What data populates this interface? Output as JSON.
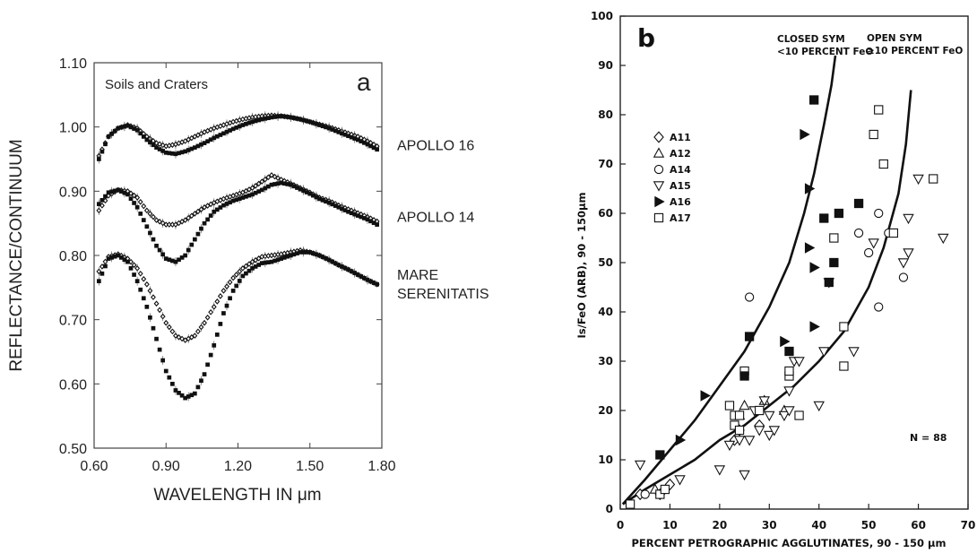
{
  "chart_data": [
    {
      "type": "scatter",
      "panel_label": "a",
      "annotation": "Soils and Craters",
      "title": "",
      "xlabel": "WAVELENGTH IN μm",
      "ylabel": "REFLECTANCE/CONTINUUM",
      "xlim": [
        0.6,
        1.8
      ],
      "ylim": [
        0.5,
        1.1
      ],
      "xticks": [
        "0.60",
        "0.90",
        "1.20",
        "1.50",
        "1.80"
      ],
      "yticks": [
        "0.50",
        "0.60",
        "0.70",
        "0.80",
        "0.90",
        "1.00",
        "1.10"
      ],
      "grid": false,
      "side_labels": [
        {
          "lines": [
            "APOLLO 16"
          ],
          "y": 0.972
        },
        {
          "lines": [
            "APOLLO 14"
          ],
          "y": 0.861
        },
        {
          "lines": [
            "MARE",
            "SERENITATIS"
          ],
          "y": 0.771
        }
      ],
      "series": [
        {
          "marker": "diamond",
          "x": [
            0.62,
            0.66,
            0.7,
            0.74,
            0.78,
            0.82,
            0.86,
            0.9,
            0.94,
            0.98,
            1.02,
            1.06,
            1.1,
            1.14,
            1.18,
            1.22,
            1.26,
            1.3,
            1.34,
            1.38,
            1.42,
            1.46,
            1.5,
            1.54,
            1.58,
            1.62,
            1.66,
            1.7,
            1.74,
            1.78
          ],
          "y": [
            0.955,
            0.985,
            0.998,
            1.003,
            0.998,
            0.985,
            0.975,
            0.97,
            0.973,
            0.978,
            0.985,
            0.992,
            0.998,
            1.003,
            1.008,
            1.012,
            1.015,
            1.017,
            1.018,
            1.017,
            1.015,
            1.012,
            1.008,
            1.004,
            1.0,
            0.995,
            0.99,
            0.985,
            0.978,
            0.97
          ]
        },
        {
          "marker": "square",
          "x": [
            0.62,
            0.66,
            0.7,
            0.74,
            0.78,
            0.82,
            0.86,
            0.9,
            0.94,
            0.98,
            1.02,
            1.06,
            1.1,
            1.14,
            1.18,
            1.22,
            1.26,
            1.3,
            1.34,
            1.38,
            1.42,
            1.46,
            1.5,
            1.54,
            1.58,
            1.62,
            1.66,
            1.7,
            1.74,
            1.78
          ],
          "y": [
            0.95,
            0.985,
            0.998,
            1.002,
            0.995,
            0.98,
            0.968,
            0.96,
            0.958,
            0.962,
            0.968,
            0.975,
            0.983,
            0.99,
            0.997,
            1.003,
            1.008,
            1.012,
            1.015,
            1.017,
            1.015,
            1.012,
            1.008,
            1.003,
            0.998,
            0.992,
            0.986,
            0.98,
            0.973,
            0.965
          ]
        },
        {
          "marker": "diamond",
          "x": [
            0.62,
            0.66,
            0.7,
            0.74,
            0.78,
            0.82,
            0.86,
            0.9,
            0.94,
            0.98,
            1.02,
            1.06,
            1.1,
            1.14,
            1.18,
            1.22,
            1.26,
            1.3,
            1.34,
            1.38,
            1.42,
            1.46,
            1.5,
            1.54,
            1.58,
            1.62,
            1.66,
            1.7,
            1.74,
            1.78
          ],
          "y": [
            0.87,
            0.893,
            0.902,
            0.9,
            0.89,
            0.87,
            0.855,
            0.848,
            0.848,
            0.855,
            0.865,
            0.875,
            0.882,
            0.888,
            0.893,
            0.898,
            0.905,
            0.915,
            0.925,
            0.918,
            0.912,
            0.905,
            0.898,
            0.89,
            0.885,
            0.878,
            0.872,
            0.866,
            0.86,
            0.853
          ]
        },
        {
          "marker": "square",
          "x": [
            0.62,
            0.66,
            0.7,
            0.74,
            0.78,
            0.82,
            0.86,
            0.9,
            0.94,
            0.98,
            1.02,
            1.06,
            1.1,
            1.14,
            1.18,
            1.22,
            1.26,
            1.3,
            1.34,
            1.38,
            1.42,
            1.46,
            1.5,
            1.54,
            1.58,
            1.62,
            1.66,
            1.7,
            1.74,
            1.78
          ],
          "y": [
            0.88,
            0.898,
            0.902,
            0.895,
            0.875,
            0.845,
            0.815,
            0.795,
            0.79,
            0.8,
            0.825,
            0.85,
            0.868,
            0.878,
            0.885,
            0.89,
            0.895,
            0.902,
            0.91,
            0.913,
            0.91,
            0.903,
            0.896,
            0.888,
            0.882,
            0.875,
            0.868,
            0.862,
            0.856,
            0.848
          ]
        },
        {
          "marker": "diamond",
          "x": [
            0.62,
            0.66,
            0.7,
            0.74,
            0.78,
            0.82,
            0.86,
            0.9,
            0.94,
            0.98,
            1.02,
            1.06,
            1.1,
            1.14,
            1.18,
            1.22,
            1.26,
            1.3,
            1.34,
            1.38,
            1.42,
            1.46,
            1.5,
            1.54,
            1.58,
            1.62,
            1.66,
            1.7,
            1.74,
            1.78
          ],
          "y": [
            0.775,
            0.798,
            0.802,
            0.795,
            0.78,
            0.755,
            0.725,
            0.695,
            0.675,
            0.668,
            0.675,
            0.695,
            0.72,
            0.745,
            0.765,
            0.78,
            0.79,
            0.798,
            0.8,
            0.802,
            0.805,
            0.808,
            0.805,
            0.8,
            0.793,
            0.785,
            0.778,
            0.77,
            0.762,
            0.755
          ]
        },
        {
          "marker": "square",
          "x": [
            0.62,
            0.66,
            0.7,
            0.74,
            0.78,
            0.82,
            0.86,
            0.9,
            0.94,
            0.98,
            1.02,
            1.06,
            1.1,
            1.14,
            1.18,
            1.22,
            1.26,
            1.3,
            1.34,
            1.38,
            1.42,
            1.46,
            1.5,
            1.54,
            1.58,
            1.62,
            1.66,
            1.7,
            1.74,
            1.78
          ],
          "y": [
            0.76,
            0.795,
            0.8,
            0.79,
            0.76,
            0.72,
            0.67,
            0.62,
            0.59,
            0.578,
            0.585,
            0.615,
            0.66,
            0.71,
            0.745,
            0.768,
            0.78,
            0.788,
            0.79,
            0.795,
            0.8,
            0.805,
            0.805,
            0.8,
            0.793,
            0.785,
            0.778,
            0.77,
            0.762,
            0.755
          ]
        }
      ]
    },
    {
      "type": "scatter",
      "panel_label": "b",
      "title": "",
      "xlabel": "PERCENT PETROGRAPHIC AGGLUTINATES, 90 - 150 μm",
      "ylabel": "Is/FeO (ARB), 90 - 150μm",
      "xlim": [
        0,
        70
      ],
      "ylim": [
        0,
        100
      ],
      "xticks": [
        "0",
        "10",
        "20",
        "30",
        "40",
        "50",
        "60",
        "70"
      ],
      "yticks": [
        "0",
        "10",
        "20",
        "30",
        "40",
        "50",
        "60",
        "70",
        "80",
        "90",
        "100"
      ],
      "grid": false,
      "curve_labels": [
        {
          "lines": [
            "CLOSED SYM",
            "<10 PERCENT FeO"
          ]
        },
        {
          "lines": [
            "OPEN SYM",
            "≥10 PERCENT FeO"
          ]
        }
      ],
      "annotation": "N = 88",
      "legend": [
        "A11",
        "A12",
        "A14",
        "A15",
        "A16",
        "A17"
      ],
      "legend_placement": "upper-left",
      "curves": [
        {
          "x": [
            0.5,
            5,
            10,
            15,
            20,
            25,
            30,
            34,
            37,
            39,
            41,
            42.5,
            43.3
          ],
          "y": [
            1,
            6,
            12,
            18,
            25,
            32,
            41,
            50,
            60,
            68,
            78,
            86,
            92
          ]
        },
        {
          "x": [
            0.5,
            5,
            10,
            15,
            20,
            25,
            30,
            35,
            40,
            45,
            50,
            53,
            56,
            57.5,
            58.5
          ],
          "y": [
            1,
            4,
            7,
            10,
            14,
            17,
            21,
            25,
            30,
            36,
            45,
            53,
            64,
            74,
            85
          ]
        }
      ],
      "groups": [
        {
          "name": "A11",
          "marker": "diamond",
          "fill": false,
          "points": [
            [
              4,
              3
            ],
            [
              8,
              3
            ],
            [
              10,
              5
            ],
            [
              23,
              14
            ],
            [
              24,
              16
            ],
            [
              28,
              17
            ]
          ]
        },
        {
          "name": "A12",
          "marker": "triangle-up",
          "fill": false,
          "points": [
            [
              7,
              4
            ],
            [
              24,
              19
            ],
            [
              25,
              21
            ],
            [
              29,
              22
            ],
            [
              33,
              20
            ]
          ]
        },
        {
          "name": "A14",
          "marker": "circle",
          "fill": false,
          "points": [
            [
              5,
              3
            ],
            [
              26,
              43
            ],
            [
              48,
              56
            ],
            [
              50,
              52
            ],
            [
              52,
              60
            ],
            [
              52,
              41
            ],
            [
              54,
              56
            ],
            [
              57,
              47
            ]
          ]
        },
        {
          "name": "A15",
          "marker": "triangle-down",
          "fill": false,
          "points": [
            [
              4,
              9
            ],
            [
              12,
              6
            ],
            [
              20,
              8
            ],
            [
              22,
              13
            ],
            [
              24,
              14
            ],
            [
              25,
              7
            ],
            [
              26,
              14
            ],
            [
              27,
              20
            ],
            [
              28,
              16
            ],
            [
              29,
              22
            ],
            [
              30,
              15
            ],
            [
              30,
              19
            ],
            [
              31,
              16
            ],
            [
              33,
              19
            ],
            [
              34,
              20
            ],
            [
              34,
              24
            ],
            [
              35,
              30
            ],
            [
              36,
              30
            ],
            [
              40,
              21
            ],
            [
              41,
              32
            ],
            [
              42,
              46
            ],
            [
              47,
              32
            ],
            [
              51,
              54
            ],
            [
              57,
              50
            ],
            [
              58,
              52
            ],
            [
              58,
              59
            ],
            [
              60,
              67
            ],
            [
              65,
              55
            ]
          ]
        },
        {
          "name": "A16",
          "marker": "triangle-right",
          "fill": true,
          "points": [
            [
              12,
              14
            ],
            [
              17,
              23
            ],
            [
              33,
              34
            ],
            [
              37,
              76
            ],
            [
              38,
              65
            ],
            [
              38,
              53
            ],
            [
              39,
              49
            ],
            [
              39,
              37
            ]
          ]
        },
        {
          "name": "A17",
          "marker": "square",
          "fill": false,
          "points": [
            [
              2,
              1
            ],
            [
              8,
              3
            ],
            [
              9,
              4
            ],
            [
              22,
              21
            ],
            [
              23,
              17
            ],
            [
              23,
              19
            ],
            [
              24,
              16
            ],
            [
              24,
              19
            ],
            [
              25,
              28
            ],
            [
              28,
              20
            ],
            [
              34,
              27
            ],
            [
              34,
              28
            ],
            [
              36,
              19
            ],
            [
              43,
              55
            ],
            [
              45,
              37
            ],
            [
              45,
              29
            ],
            [
              51,
              76
            ],
            [
              52,
              81
            ],
            [
              53,
              70
            ],
            [
              55,
              56
            ],
            [
              63,
              67
            ]
          ]
        },
        {
          "name": "filled-square",
          "marker": "square",
          "fill": true,
          "points": [
            [
              8,
              11
            ],
            [
              25,
              27
            ],
            [
              26,
              35
            ],
            [
              34,
              32
            ],
            [
              39,
              83
            ],
            [
              41,
              59
            ],
            [
              42,
              46
            ],
            [
              43,
              50
            ],
            [
              44,
              60
            ],
            [
              48,
              62
            ]
          ]
        }
      ]
    }
  ]
}
